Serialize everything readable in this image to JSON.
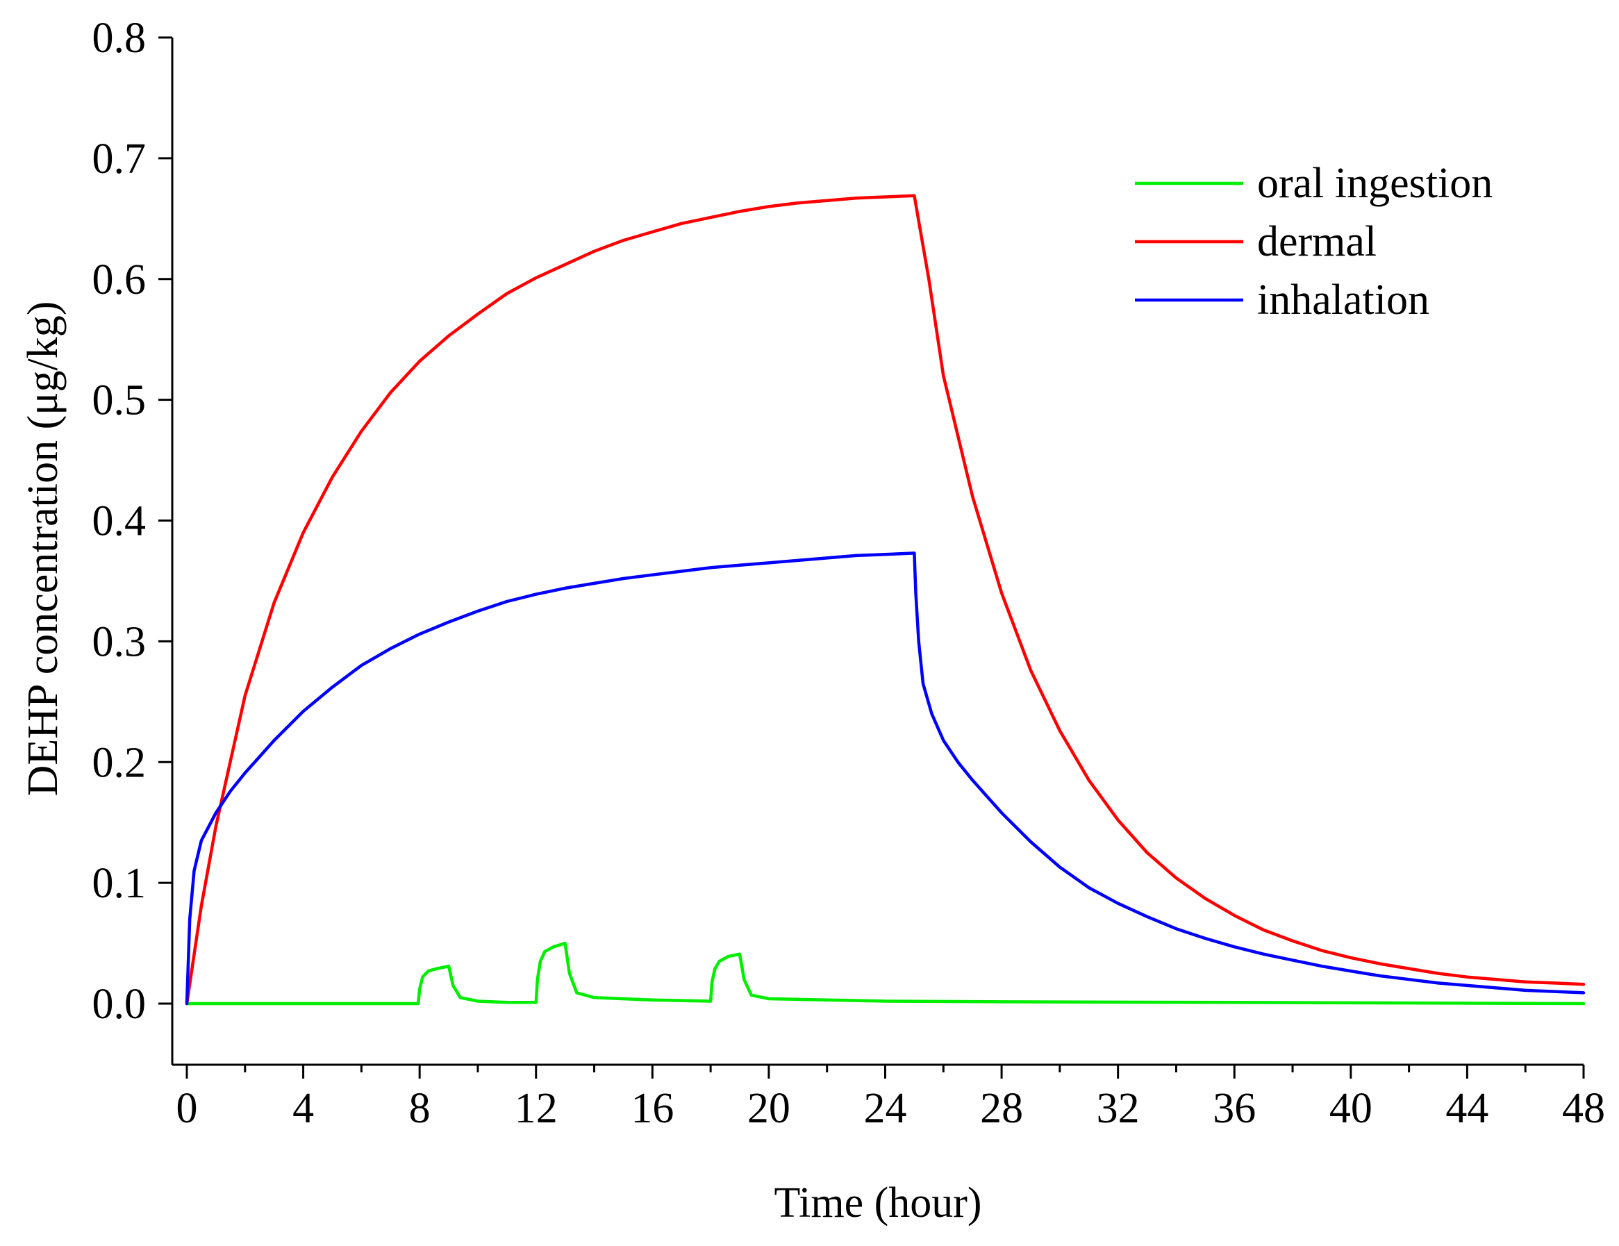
{
  "chart_data": {
    "type": "line",
    "title": "",
    "xlabel": "Time (hour)",
    "ylabel": "DEHP concentration (μg/kg)",
    "xlim": [
      0,
      48
    ],
    "ylim": [
      -0.05,
      0.8
    ],
    "xticks": [
      0,
      4,
      8,
      12,
      16,
      20,
      24,
      28,
      32,
      36,
      40,
      44,
      48
    ],
    "xtick_labels": [
      "0",
      "4",
      "8",
      "12",
      "16",
      "20",
      "24",
      "28",
      "32",
      "36",
      "40",
      "44",
      "48"
    ],
    "yticks": [
      0.0,
      0.1,
      0.2,
      0.3,
      0.4,
      0.5,
      0.6,
      0.7,
      0.8
    ],
    "ytick_labels": [
      "0.0",
      "0.1",
      "0.2",
      "0.3",
      "0.4",
      "0.5",
      "0.6",
      "0.7",
      "0.8"
    ],
    "grid": false,
    "legend_position": "top-right",
    "series": [
      {
        "name": "oral ingestion",
        "color": "#00ee00",
        "x": [
          0,
          7.95,
          8.0,
          8.1,
          8.3,
          8.6,
          9.0,
          9.15,
          9.4,
          10.0,
          11.0,
          12.0,
          12.05,
          12.15,
          12.3,
          12.6,
          13.0,
          13.15,
          13.4,
          14.0,
          16.0,
          18.0,
          18.05,
          18.15,
          18.3,
          18.6,
          19.0,
          19.15,
          19.4,
          20.0,
          24.0,
          28.0,
          36.0,
          48.0
        ],
        "values": [
          0.0,
          0.0,
          0.012,
          0.022,
          0.027,
          0.029,
          0.031,
          0.015,
          0.005,
          0.002,
          0.001,
          0.001,
          0.02,
          0.035,
          0.043,
          0.047,
          0.05,
          0.025,
          0.009,
          0.005,
          0.003,
          0.002,
          0.018,
          0.029,
          0.035,
          0.039,
          0.041,
          0.02,
          0.007,
          0.004,
          0.002,
          0.0015,
          0.001,
          0.0
        ]
      },
      {
        "name": "dermal",
        "color": "#ff0000",
        "x": [
          0,
          0.5,
          1,
          2,
          3,
          4,
          5,
          6,
          7,
          8,
          9,
          10,
          11,
          12,
          13,
          14,
          15,
          16,
          17,
          18,
          19,
          20,
          21,
          22,
          23,
          24,
          25,
          25.5,
          26,
          27,
          28,
          29,
          30,
          31,
          32,
          33,
          34,
          35,
          36,
          37,
          38,
          39,
          40,
          41,
          42,
          43,
          44,
          45,
          46,
          47,
          48
        ],
        "values": [
          0.0,
          0.081,
          0.147,
          0.255,
          0.332,
          0.39,
          0.436,
          0.474,
          0.506,
          0.532,
          0.553,
          0.571,
          0.588,
          0.601,
          0.612,
          0.623,
          0.632,
          0.639,
          0.646,
          0.651,
          0.656,
          0.66,
          0.663,
          0.665,
          0.667,
          0.668,
          0.669,
          0.6,
          0.52,
          0.42,
          0.34,
          0.276,
          0.226,
          0.185,
          0.152,
          0.125,
          0.104,
          0.087,
          0.073,
          0.061,
          0.052,
          0.044,
          0.038,
          0.033,
          0.029,
          0.025,
          0.022,
          0.02,
          0.018,
          0.017,
          0.016
        ]
      },
      {
        "name": "inhalation",
        "color": "#0000ff",
        "x": [
          0,
          0.1,
          0.25,
          0.5,
          1,
          1.5,
          2,
          3,
          4,
          5,
          6,
          7,
          8,
          9,
          10,
          11,
          12,
          13,
          14,
          15,
          16,
          17,
          18,
          19,
          20,
          21,
          22,
          23,
          24,
          25,
          25.05,
          25.15,
          25.3,
          25.6,
          26.0,
          26.5,
          27,
          28,
          29,
          30,
          31,
          32,
          33,
          34,
          35,
          36,
          37,
          38,
          39,
          40,
          41,
          42,
          43,
          44,
          45,
          46,
          47,
          48
        ],
        "values": [
          0.0,
          0.07,
          0.11,
          0.135,
          0.158,
          0.176,
          0.191,
          0.218,
          0.242,
          0.262,
          0.28,
          0.294,
          0.306,
          0.316,
          0.325,
          0.333,
          0.339,
          0.344,
          0.348,
          0.352,
          0.355,
          0.358,
          0.361,
          0.363,
          0.365,
          0.367,
          0.369,
          0.371,
          0.372,
          0.373,
          0.34,
          0.3,
          0.265,
          0.24,
          0.218,
          0.2,
          0.185,
          0.158,
          0.134,
          0.113,
          0.096,
          0.083,
          0.072,
          0.062,
          0.054,
          0.047,
          0.041,
          0.036,
          0.031,
          0.027,
          0.023,
          0.02,
          0.017,
          0.015,
          0.013,
          0.011,
          0.01,
          0.009
        ]
      }
    ]
  }
}
